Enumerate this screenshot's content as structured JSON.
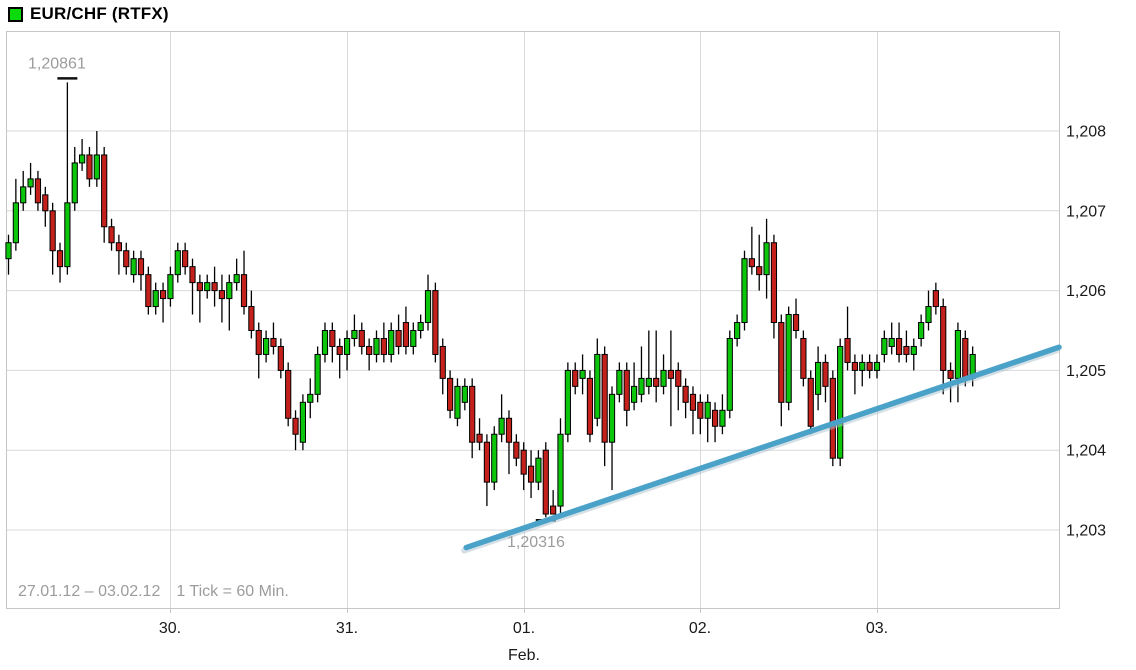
{
  "header": {
    "title": "EUR/CHF (RTFX)",
    "legend_color": "#0bdb0b"
  },
  "footer": {
    "date_range": "27.01.12 – 03.02.12",
    "tick_info": "1 Tick = 60 Min."
  },
  "chart_data": {
    "type": "candlestick",
    "title": "EUR/CHF (RTFX)",
    "date_range": "27.01.12 – 03.02.12",
    "interval": "1 Tick = 60 Min.",
    "grid": true,
    "y_axis": {
      "side": "right",
      "tick_labels": [
        "1,208",
        "1,207",
        "1,206",
        "1,205",
        "1,204",
        "1,203"
      ],
      "tick_values": [
        1.208,
        1.207,
        1.206,
        1.205,
        1.204,
        1.203
      ],
      "range_shown": [
        1.2022,
        1.2093
      ]
    },
    "x_axis": {
      "tick_labels": [
        "30.",
        "31.",
        "01.",
        "02.",
        "03."
      ],
      "month_label": "Feb.",
      "month_label_under_tick": 2,
      "day_start_indices": [
        22,
        46,
        70,
        94,
        118
      ]
    },
    "high_annotation": {
      "label": "1,20861",
      "value": 1.20861,
      "candle_index": 8
    },
    "low_annotation": {
      "label": "1,20316",
      "value": 1.20316,
      "candle_index": 73
    },
    "trendline": {
      "color": "#4aa2c8",
      "x1_frac": 0.437,
      "y1_price": 1.20278,
      "x2_frac": 1.0,
      "y2_price": 1.20529
    },
    "colors": {
      "up": "#0cc60c",
      "down": "#c4201c",
      "wick": "#000000",
      "grid": "#d9d9d9",
      "border": "#c6c6c6",
      "axis_text": "#1a1a1a",
      "annotation_text": "#9c9c9c"
    },
    "candles_format": [
      "open",
      "high",
      "low",
      "close"
    ],
    "candles": [
      [
        1.2064,
        1.2067,
        1.2062,
        1.2066
      ],
      [
        1.2066,
        1.2074,
        1.2065,
        1.2071
      ],
      [
        1.2071,
        1.2075,
        1.207,
        1.2073
      ],
      [
        1.2073,
        1.2076,
        1.2072,
        1.2074
      ],
      [
        1.2074,
        1.2075,
        1.207,
        1.2071
      ],
      [
        1.2072,
        1.2073,
        1.2068,
        1.207
      ],
      [
        1.207,
        1.2071,
        1.2062,
        1.2065
      ],
      [
        1.2065,
        1.2066,
        1.2061,
        1.2063
      ],
      [
        1.2063,
        1.20861,
        1.2062,
        1.2071
      ],
      [
        1.2071,
        1.2078,
        1.207,
        1.2076
      ],
      [
        1.2076,
        1.2079,
        1.2075,
        1.2077
      ],
      [
        1.2077,
        1.2078,
        1.2073,
        1.2074
      ],
      [
        1.2074,
        1.208,
        1.2073,
        1.2077
      ],
      [
        1.2077,
        1.2078,
        1.2066,
        1.2068
      ],
      [
        1.2068,
        1.2069,
        1.2065,
        1.2066
      ],
      [
        1.2066,
        1.2067,
        1.2062,
        1.2065
      ],
      [
        1.2065,
        1.2066,
        1.2062,
        1.2063
      ],
      [
        1.2062,
        1.2065,
        1.2061,
        1.2064
      ],
      [
        1.2064,
        1.2065,
        1.206,
        1.2062
      ],
      [
        1.2062,
        1.2063,
        1.2057,
        1.2058
      ],
      [
        1.2058,
        1.2061,
        1.2057,
        1.206
      ],
      [
        1.206,
        1.2061,
        1.2056,
        1.2059
      ],
      [
        1.2059,
        1.2063,
        1.2058,
        1.2062
      ],
      [
        1.2062,
        1.2066,
        1.2061,
        1.2065
      ],
      [
        1.2065,
        1.2066,
        1.2062,
        1.2063
      ],
      [
        1.2063,
        1.2064,
        1.2057,
        1.2061
      ],
      [
        1.2061,
        1.2062,
        1.2056,
        1.206
      ],
      [
        1.206,
        1.2062,
        1.2059,
        1.2061
      ],
      [
        1.2061,
        1.2063,
        1.2058,
        1.206
      ],
      [
        1.206,
        1.2062,
        1.2056,
        1.2059
      ],
      [
        1.2059,
        1.2062,
        1.2055,
        1.2061
      ],
      [
        1.2061,
        1.2064,
        1.206,
        1.2062
      ],
      [
        1.2062,
        1.2065,
        1.2057,
        1.2058
      ],
      [
        1.2058,
        1.206,
        1.2054,
        1.2055
      ],
      [
        1.2055,
        1.2056,
        1.2049,
        1.2052
      ],
      [
        1.2052,
        1.2055,
        1.2051,
        1.2054
      ],
      [
        1.2054,
        1.2056,
        1.2052,
        1.2053
      ],
      [
        1.2053,
        1.2054,
        1.2049,
        1.205
      ],
      [
        1.205,
        1.2051,
        1.2043,
        1.2044
      ],
      [
        1.2044,
        1.2045,
        1.204,
        1.2042
      ],
      [
        1.2041,
        1.2047,
        1.204,
        1.2046
      ],
      [
        1.2046,
        1.2049,
        1.2044,
        1.2047
      ],
      [
        1.2047,
        1.2053,
        1.2046,
        1.2052
      ],
      [
        1.2052,
        1.2056,
        1.2051,
        1.2055
      ],
      [
        1.2055,
        1.2056,
        1.2051,
        1.2053
      ],
      [
        1.2053,
        1.2054,
        1.2049,
        1.2052
      ],
      [
        1.2052,
        1.2055,
        1.205,
        1.2054
      ],
      [
        1.2054,
        1.2057,
        1.2053,
        1.2055
      ],
      [
        1.2055,
        1.2056,
        1.2052,
        1.2053
      ],
      [
        1.2053,
        1.2054,
        1.205,
        1.2052
      ],
      [
        1.2052,
        1.2055,
        1.2051,
        1.2054
      ],
      [
        1.2054,
        1.2056,
        1.2051,
        1.2052
      ],
      [
        1.2052,
        1.2056,
        1.2051,
        1.2055
      ],
      [
        1.2055,
        1.2057,
        1.2052,
        1.2053
      ],
      [
        1.2056,
        1.2058,
        1.2052,
        1.2053
      ],
      [
        1.2053,
        1.2056,
        1.2052,
        1.2055
      ],
      [
        1.2055,
        1.2057,
        1.2054,
        1.2056
      ],
      [
        1.2056,
        1.2062,
        1.2055,
        1.206
      ],
      [
        1.206,
        1.2061,
        1.2051,
        1.2052
      ],
      [
        1.2053,
        1.2054,
        1.2047,
        1.2049
      ],
      [
        1.2049,
        1.205,
        1.2044,
        1.2045
      ],
      [
        1.2044,
        1.2049,
        1.2043,
        1.2048
      ],
      [
        1.2046,
        1.2049,
        1.2045,
        1.2048
      ],
      [
        1.2048,
        1.2049,
        1.2039,
        1.2041
      ],
      [
        1.2042,
        1.2044,
        1.204,
        1.2041
      ],
      [
        1.2041,
        1.2042,
        1.2033,
        1.2036
      ],
      [
        1.2036,
        1.2043,
        1.2035,
        1.2042
      ],
      [
        1.2042,
        1.2047,
        1.2041,
        1.2044
      ],
      [
        1.2044,
        1.2045,
        1.2037,
        1.2041
      ],
      [
        1.2041,
        1.2042,
        1.2038,
        1.2039
      ],
      [
        1.204,
        1.2041,
        1.2035,
        1.2037
      ],
      [
        1.2038,
        1.204,
        1.2034,
        1.2036
      ],
      [
        1.2036,
        1.204,
        1.2035,
        1.2039
      ],
      [
        1.204,
        1.2041,
        1.20316,
        1.2032
      ],
      [
        1.2033,
        1.2035,
        1.2032,
        1.2032
      ],
      [
        1.2033,
        1.2044,
        1.2032,
        1.2042
      ],
      [
        1.2042,
        1.2051,
        1.2041,
        1.205
      ],
      [
        1.205,
        1.2051,
        1.2047,
        1.2048
      ],
      [
        1.2049,
        1.2052,
        1.2047,
        1.205
      ],
      [
        1.2049,
        1.205,
        1.2041,
        1.2042
      ],
      [
        1.2044,
        1.2054,
        1.2043,
        1.2052
      ],
      [
        1.2052,
        1.2053,
        1.2038,
        1.2041
      ],
      [
        1.2041,
        1.2048,
        1.2035,
        1.2047
      ],
      [
        1.2047,
        1.2051,
        1.2046,
        1.205
      ],
      [
        1.205,
        1.2051,
        1.2043,
        1.2045
      ],
      [
        1.2046,
        1.2051,
        1.2045,
        1.2048
      ],
      [
        1.2047,
        1.2053,
        1.2046,
        1.2049
      ],
      [
        1.2048,
        1.2055,
        1.2047,
        1.2049
      ],
      [
        1.2049,
        1.2055,
        1.2046,
        1.2048
      ],
      [
        1.2048,
        1.2052,
        1.2047,
        1.205
      ],
      [
        1.205,
        1.2055,
        1.2043,
        1.2049
      ],
      [
        1.205,
        1.2051,
        1.2045,
        1.2048
      ],
      [
        1.2048,
        1.2049,
        1.2044,
        1.2046
      ],
      [
        1.2047,
        1.2048,
        1.2042,
        1.2045
      ],
      [
        1.2046,
        1.2047,
        1.2042,
        1.2044
      ],
      [
        1.2044,
        1.2047,
        1.2041,
        1.2046
      ],
      [
        1.2045,
        1.2046,
        1.2041,
        1.2043
      ],
      [
        1.2043,
        1.2047,
        1.2042,
        1.2045
      ],
      [
        1.2045,
        1.2055,
        1.2044,
        1.2054
      ],
      [
        1.2054,
        1.2057,
        1.2053,
        1.2056
      ],
      [
        1.2056,
        1.2065,
        1.2055,
        1.2064
      ],
      [
        1.2064,
        1.2068,
        1.2062,
        1.2063
      ],
      [
        1.2063,
        1.2067,
        1.206,
        1.2062
      ],
      [
        1.2062,
        1.2069,
        1.2059,
        1.2066
      ],
      [
        1.2066,
        1.2067,
        1.2054,
        1.2056
      ],
      [
        1.2056,
        1.2057,
        1.2043,
        1.2046
      ],
      [
        1.2046,
        1.2058,
        1.2045,
        1.2057
      ],
      [
        1.2057,
        1.2059,
        1.2054,
        1.2055
      ],
      [
        1.2054,
        1.2055,
        1.2048,
        1.2049
      ],
      [
        1.2049,
        1.205,
        1.2042,
        1.2043
      ],
      [
        1.2047,
        1.2053,
        1.2045,
        1.2051
      ],
      [
        1.2051,
        1.2052,
        1.2046,
        1.2048
      ],
      [
        1.2049,
        1.205,
        1.2038,
        1.2039
      ],
      [
        1.2039,
        1.2054,
        1.2038,
        1.2053
      ],
      [
        1.2054,
        1.2058,
        1.205,
        1.2051
      ],
      [
        1.2051,
        1.2052,
        1.2047,
        1.205
      ],
      [
        1.205,
        1.2052,
        1.2048,
        1.2051
      ],
      [
        1.2051,
        1.2052,
        1.2049,
        1.205
      ],
      [
        1.205,
        1.2052,
        1.2049,
        1.2051
      ],
      [
        1.2052,
        1.2055,
        1.2051,
        1.2054
      ],
      [
        1.2053,
        1.2056,
        1.2052,
        1.2054
      ],
      [
        1.2054,
        1.2056,
        1.2051,
        1.2052
      ],
      [
        1.2053,
        1.2055,
        1.2051,
        1.2052
      ],
      [
        1.2052,
        1.2054,
        1.205,
        1.2053
      ],
      [
        1.2054,
        1.2057,
        1.2053,
        1.2056
      ],
      [
        1.2056,
        1.206,
        1.2055,
        1.2058
      ],
      [
        1.206,
        1.2061,
        1.2057,
        1.2058
      ],
      [
        1.2058,
        1.2059,
        1.2047,
        1.205
      ],
      [
        1.205,
        1.2051,
        1.2046,
        1.2049
      ],
      [
        1.2049,
        1.2056,
        1.2046,
        1.2055
      ],
      [
        1.2054,
        1.2055,
        1.2048,
        1.2049
      ],
      [
        1.2049,
        1.2053,
        1.2048,
        1.2052
      ]
    ]
  }
}
